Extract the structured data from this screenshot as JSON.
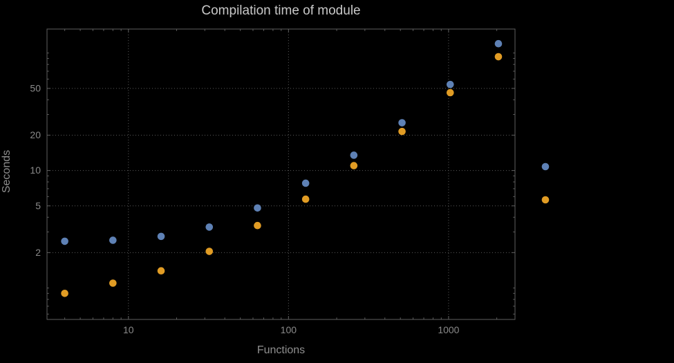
{
  "chart_data": {
    "type": "scatter",
    "title": "Compilation time of module",
    "xlabel": "Functions",
    "ylabel": "Seconds",
    "x_scale": "log",
    "y_scale": "log",
    "xlim": [
      3.1,
      2600
    ],
    "ylim": [
      0.54,
      160
    ],
    "x_ticks": [
      10,
      100,
      1000
    ],
    "y_ticks": [
      2,
      5,
      10,
      20,
      50
    ],
    "grid": "dotted major gridlines",
    "x": [
      4,
      8,
      16,
      32,
      64,
      128,
      256,
      512,
      1024,
      2048
    ],
    "series": [
      {
        "name": "blue",
        "color": "#5e81b5",
        "values": [
          2.5,
          2.55,
          2.75,
          3.3,
          4.8,
          7.8,
          13.5,
          25.5,
          54,
          120
        ]
      },
      {
        "name": "orange",
        "color": "#e19c24",
        "values": [
          0.9,
          1.1,
          1.4,
          2.05,
          3.4,
          5.7,
          11,
          21.5,
          46,
          93
        ]
      }
    ],
    "legend": {
      "position": "outside-right",
      "labels_visible": false,
      "entries": [
        {
          "series": "blue",
          "marker": "dot"
        },
        {
          "series": "orange",
          "marker": "dot"
        }
      ]
    }
  },
  "colors": {
    "background": "#000000",
    "frame": "#606060",
    "grid": "#5c5c5c",
    "tick_text": "#8a8a8a",
    "title_text": "#c8c8c8",
    "axis_label_text": "#8f8f8f"
  }
}
